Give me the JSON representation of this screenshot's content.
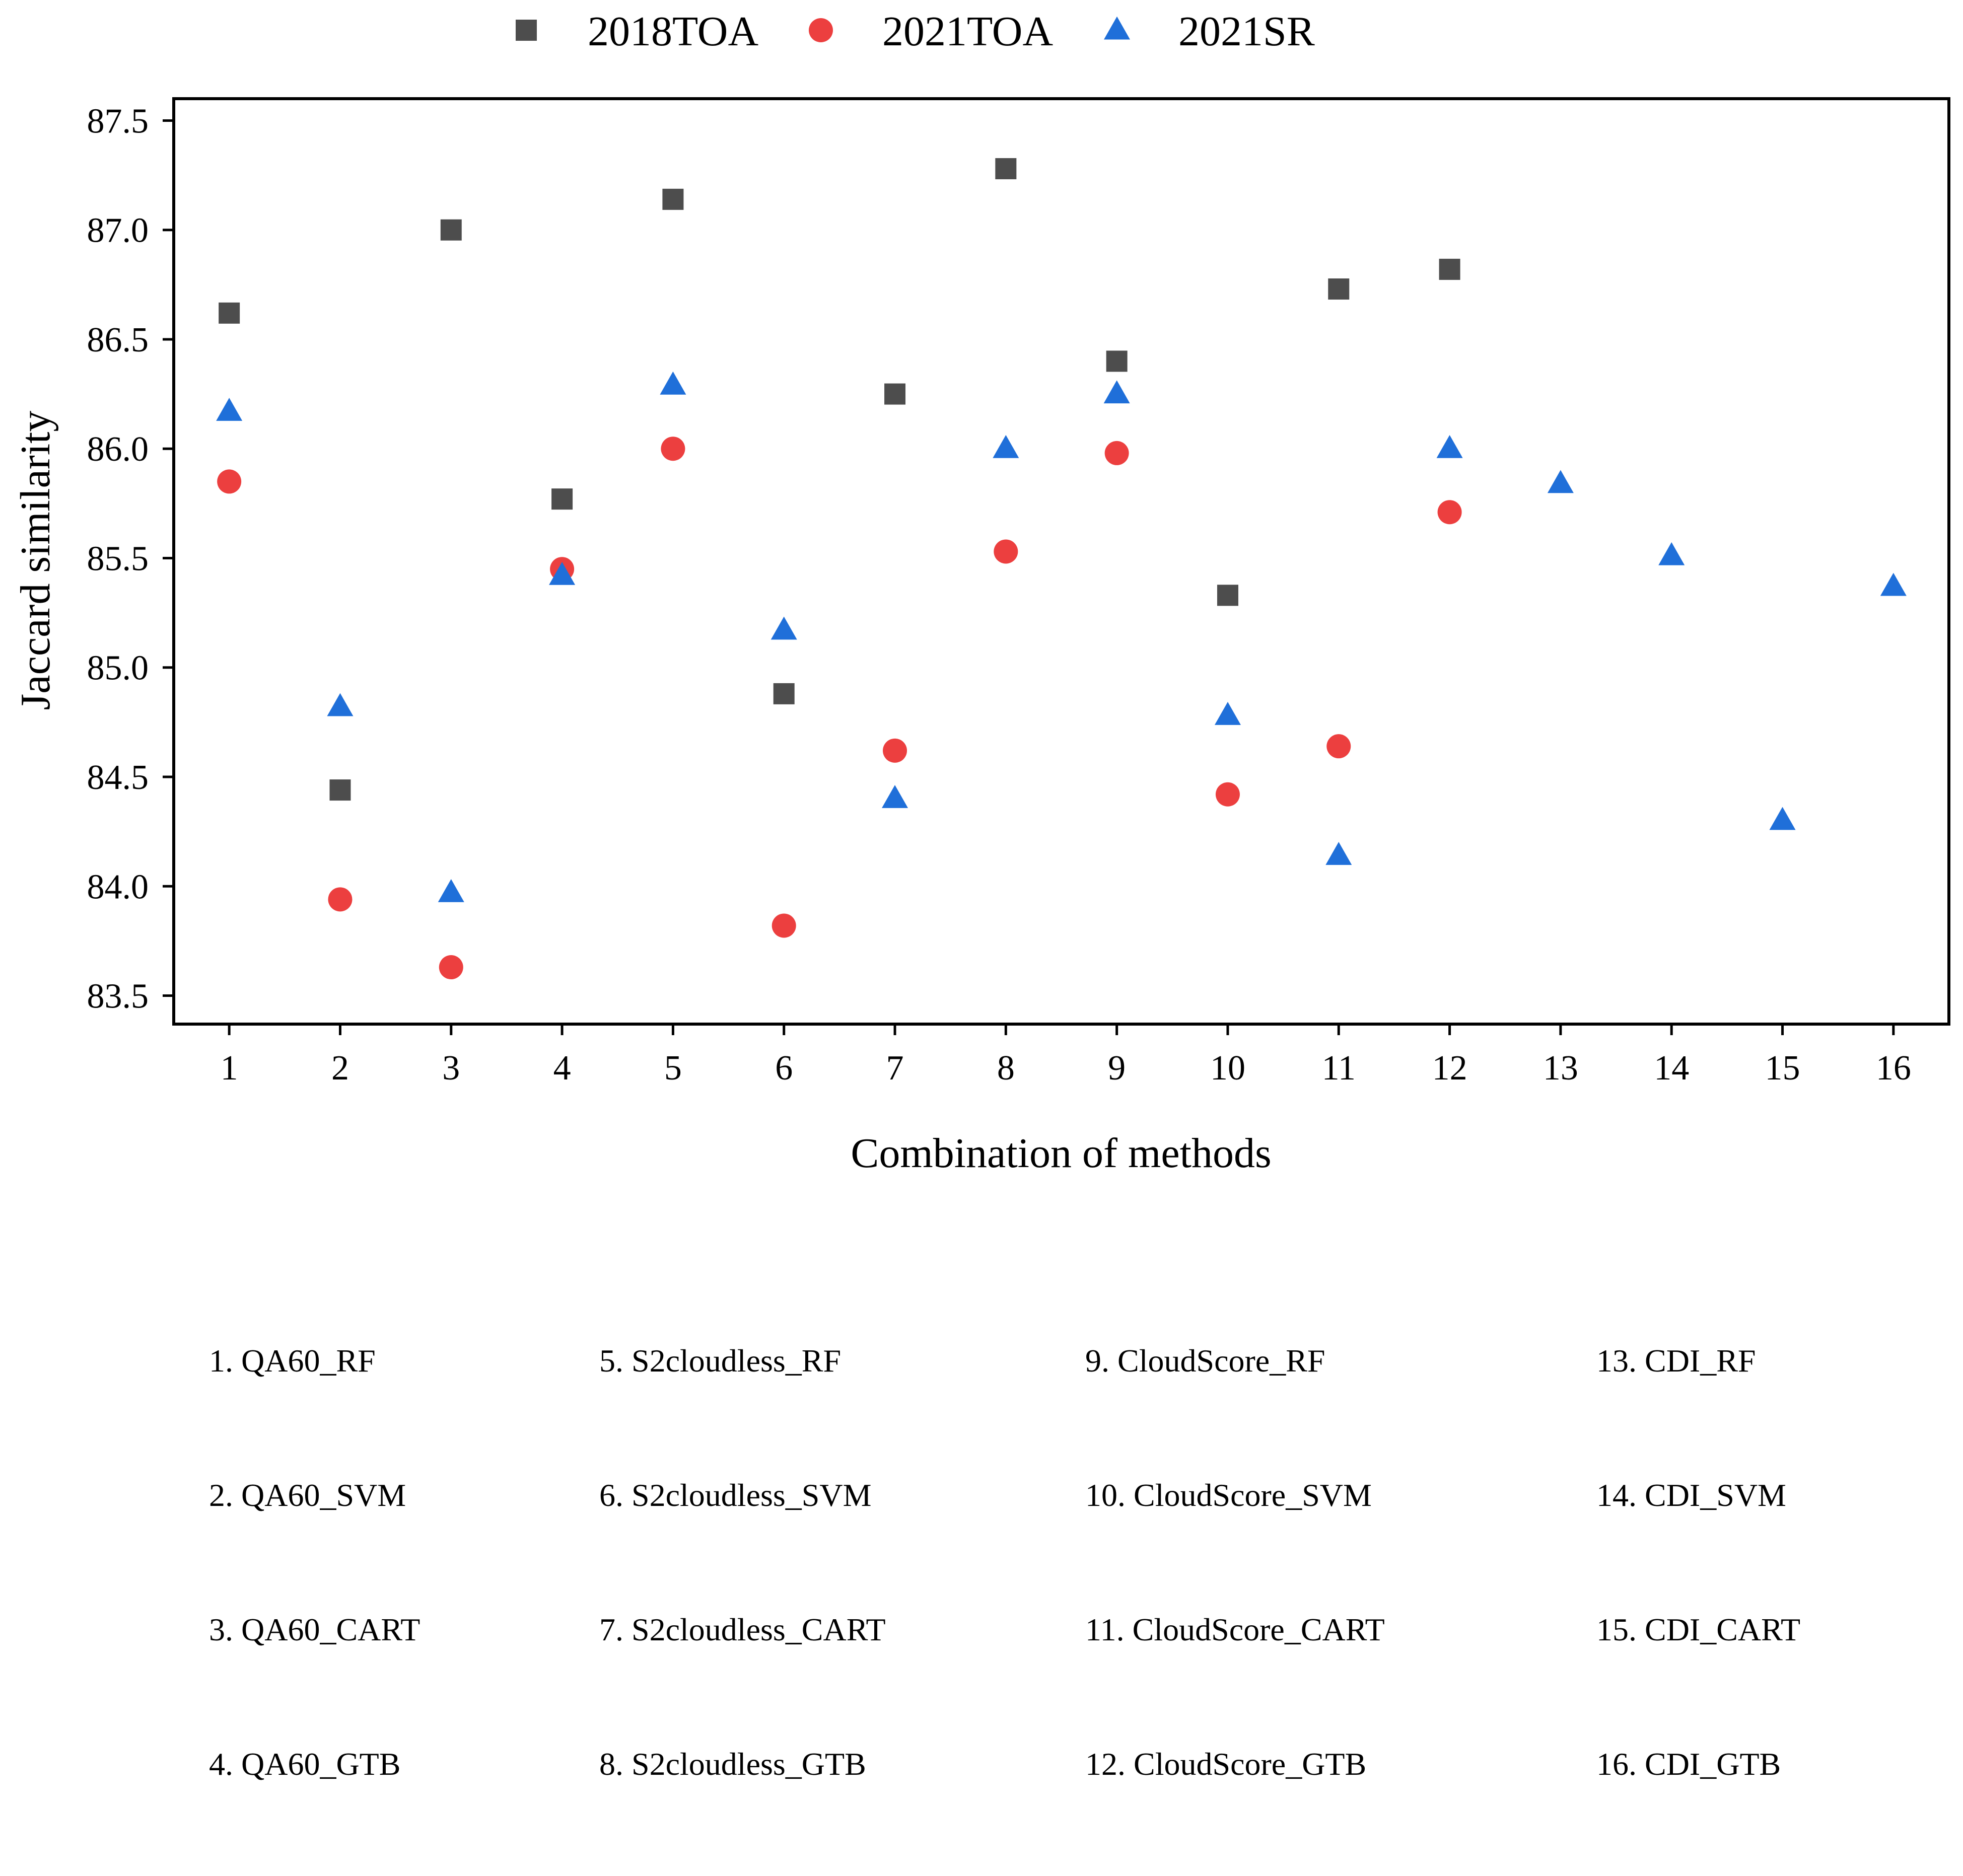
{
  "chart_data": {
    "type": "scatter",
    "xlabel": "Combination of methods",
    "ylabel": "Jaccard similarity",
    "x_ticks": [
      "1",
      "2",
      "3",
      "4",
      "5",
      "6",
      "7",
      "8",
      "9",
      "10",
      "11",
      "12",
      "13",
      "14",
      "15",
      "16"
    ],
    "y_ticks": [
      "83.5",
      "84.0",
      "84.5",
      "85.0",
      "85.5",
      "86.0",
      "86.5",
      "87.0",
      "87.5"
    ],
    "xlim": [
      0.5,
      16.5
    ],
    "ylim": [
      83.37,
      87.6
    ],
    "legend_position": "top-center",
    "series": [
      {
        "name": "2018TOA",
        "marker": "square",
        "color": "#4d4d4d",
        "x": [
          1,
          2,
          3,
          4,
          5,
          6,
          7,
          8,
          9,
          10,
          11,
          12
        ],
        "y": [
          86.62,
          84.44,
          87.0,
          85.77,
          87.14,
          84.88,
          86.25,
          87.28,
          86.4,
          85.33,
          86.73,
          86.82
        ]
      },
      {
        "name": "2021TOA",
        "marker": "circle",
        "color": "#ec3f3f",
        "x": [
          1,
          2,
          3,
          4,
          5,
          6,
          7,
          8,
          9,
          10,
          11,
          12
        ],
        "y": [
          85.85,
          83.94,
          83.63,
          85.45,
          86.0,
          83.82,
          84.62,
          85.53,
          85.98,
          84.42,
          84.64,
          85.71
        ]
      },
      {
        "name": "2021SR",
        "marker": "triangle",
        "color": "#1f6fd9",
        "x": [
          1,
          2,
          3,
          4,
          5,
          6,
          7,
          8,
          9,
          10,
          11,
          12,
          13,
          14,
          15,
          16
        ],
        "y": [
          86.17,
          84.82,
          83.97,
          85.42,
          86.29,
          85.17,
          84.4,
          86.0,
          86.25,
          84.78,
          84.14,
          86.0,
          85.84,
          85.51,
          84.3,
          85.37
        ]
      }
    ]
  },
  "method_key": {
    "columns": [
      [
        "1. QA60_RF",
        "2. QA60_SVM",
        "3. QA60_CART",
        "4. QA60_GTB"
      ],
      [
        "5. S2cloudless_RF",
        "6. S2cloudless_SVM",
        "7. S2cloudless_CART",
        "8. S2cloudless_GTB"
      ],
      [
        "9. CloudScore_RF",
        "10. CloudScore_SVM",
        "11. CloudScore_CART",
        "12. CloudScore_GTB"
      ],
      [
        "13. CDI_RF",
        "14. CDI_SVM",
        "15. CDI_CART",
        "16. CDI_GTB"
      ]
    ]
  }
}
